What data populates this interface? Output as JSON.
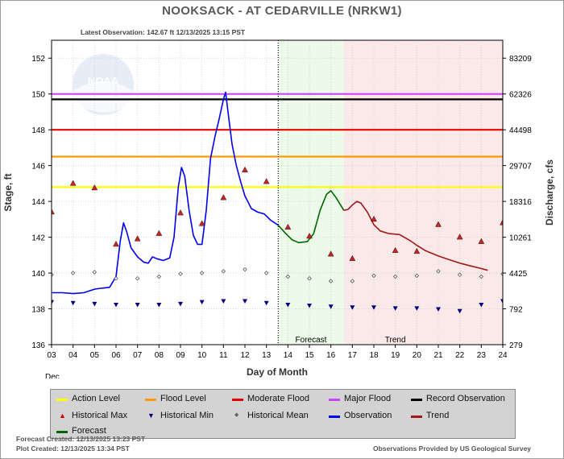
{
  "header": {
    "title": "NOOKSACK - AT CEDARVILLE  (NRKW1)",
    "latest_obs": "Latest Observation: 142.67 ft 12/13/2025 13:15 PST"
  },
  "chart_data": {
    "type": "line",
    "ylabel_left": "Stage, ft",
    "ylabel_right": "Discharge, cfs",
    "xlabel": "Day of Month",
    "month_label": "Dec",
    "ylim": [
      136,
      153
    ],
    "xlim": [
      3,
      24
    ],
    "stage_ticks": [
      136,
      138,
      140,
      142,
      144,
      146,
      148,
      150,
      152
    ],
    "flow_ticks": [
      {
        "stage": 136,
        "label": "279"
      },
      {
        "stage": 138,
        "label": "792"
      },
      {
        "stage": 140,
        "label": "4425"
      },
      {
        "stage": 142,
        "label": "10261"
      },
      {
        "stage": 144,
        "label": "18316"
      },
      {
        "stage": 146,
        "label": "29707"
      },
      {
        "stage": 148,
        "label": "44498"
      },
      {
        "stage": 150,
        "label": "62326"
      },
      {
        "stage": 152,
        "label": "83209"
      }
    ],
    "day_ticks": [
      "03",
      "04",
      "05",
      "06",
      "07",
      "08",
      "09",
      "10",
      "11",
      "12",
      "13",
      "14",
      "15",
      "16",
      "17",
      "18",
      "19",
      "20",
      "21",
      "22",
      "23",
      "24"
    ],
    "levels": [
      {
        "name": "Action Level",
        "value": 144.8,
        "color": "#ffff00"
      },
      {
        "name": "Flood Level",
        "value": 146.5,
        "color": "#ff9900"
      },
      {
        "name": "Moderate Flood",
        "value": 148.0,
        "color": "#e80000"
      },
      {
        "name": "Major Flood",
        "value": 150.0,
        "color": "#cc44ff"
      },
      {
        "name": "Record Observation",
        "value": 149.7,
        "color": "#000000"
      }
    ],
    "now_day": 13.55,
    "forecast_region": [
      13.55,
      16.6
    ],
    "trend_region": [
      16.6,
      24
    ],
    "forecast_label": "Forecast",
    "trend_label": "Trend",
    "observation": {
      "x": [
        3.0,
        3.5,
        4.0,
        4.5,
        5.0,
        5.3,
        5.7,
        6.0,
        6.2,
        6.35,
        6.5,
        6.7,
        7.0,
        7.3,
        7.5,
        7.7,
        7.9,
        8.2,
        8.5,
        8.7,
        8.9,
        9.05,
        9.2,
        9.4,
        9.6,
        9.8,
        10.0,
        10.2,
        10.4,
        10.6,
        10.8,
        11.0,
        11.1,
        11.2,
        11.4,
        11.6,
        11.8,
        12.0,
        12.3,
        12.6,
        12.9,
        13.2,
        13.55
      ],
      "y": [
        138.9,
        138.9,
        138.85,
        138.9,
        139.1,
        139.15,
        139.2,
        139.8,
        141.8,
        142.8,
        142.3,
        141.4,
        140.9,
        140.6,
        140.55,
        140.9,
        140.8,
        140.7,
        140.85,
        142.0,
        144.8,
        145.9,
        145.4,
        143.5,
        142.1,
        141.6,
        141.6,
        143.5,
        146.4,
        147.6,
        148.6,
        149.7,
        150.1,
        149.1,
        147.2,
        146.0,
        145.1,
        144.3,
        143.6,
        143.4,
        143.3,
        142.95,
        142.67
      ]
    },
    "forecast": {
      "x": [
        13.55,
        13.9,
        14.2,
        14.5,
        14.9,
        15.2,
        15.5,
        15.8,
        16.0,
        16.25,
        16.6
      ],
      "y": [
        142.67,
        142.2,
        141.85,
        141.7,
        141.75,
        142.2,
        143.5,
        144.4,
        144.6,
        144.2,
        143.5
      ]
    },
    "trend": {
      "x": [
        16.6,
        16.8,
        17.0,
        17.2,
        17.4,
        17.7,
        18.0,
        18.3,
        18.7,
        19.2,
        19.7,
        20.0,
        20.4,
        21.0,
        21.5,
        22.0,
        22.5,
        23.0,
        23.3
      ],
      "y": [
        143.5,
        143.55,
        143.8,
        144.0,
        143.9,
        143.4,
        142.7,
        142.35,
        142.2,
        142.15,
        141.8,
        141.55,
        141.25,
        140.95,
        140.75,
        140.55,
        140.4,
        140.25,
        140.15
      ]
    },
    "historical_max": {
      "x": [
        3,
        4,
        5,
        6,
        7,
        8,
        9,
        10,
        11,
        12,
        13,
        14,
        15,
        16,
        17,
        18,
        19,
        20,
        21,
        22,
        23,
        24
      ],
      "y": [
        143.4,
        145.0,
        144.75,
        141.6,
        141.9,
        142.2,
        143.35,
        142.75,
        144.2,
        145.75,
        145.1,
        142.55,
        142.05,
        141.05,
        140.8,
        143.0,
        141.25,
        141.2,
        142.7,
        142.0,
        141.75,
        142.8
      ]
    },
    "historical_min": {
      "x": [
        3,
        4,
        5,
        6,
        7,
        8,
        9,
        10,
        11,
        12,
        13,
        14,
        15,
        16,
        17,
        18,
        19,
        20,
        21,
        22,
        23,
        24
      ],
      "y": [
        138.4,
        138.35,
        138.3,
        138.25,
        138.25,
        138.25,
        138.3,
        138.4,
        138.45,
        138.45,
        138.35,
        138.25,
        138.2,
        138.15,
        138.1,
        138.1,
        138.05,
        138.05,
        138.0,
        137.9,
        138.25,
        138.45
      ]
    },
    "historical_mean": {
      "x": [
        3,
        4,
        5,
        6,
        7,
        8,
        9,
        10,
        11,
        12,
        13,
        14,
        15,
        16,
        17,
        18,
        19,
        20,
        21,
        22,
        23,
        24
      ],
      "y": [
        139.9,
        140.0,
        140.05,
        139.7,
        139.7,
        139.8,
        139.95,
        140.0,
        140.1,
        140.2,
        140.0,
        139.8,
        139.7,
        139.55,
        139.55,
        139.85,
        139.8,
        139.85,
        140.1,
        139.9,
        139.8,
        139.95
      ]
    }
  },
  "watermark": "NOAA",
  "legend": {
    "items": [
      {
        "label": "Action Level",
        "color": "#ffff00",
        "kind": "line"
      },
      {
        "label": "Flood Level",
        "color": "#ff9900",
        "kind": "line"
      },
      {
        "label": "Moderate Flood",
        "color": "#e80000",
        "kind": "line"
      },
      {
        "label": "Major Flood",
        "color": "#cc44ff",
        "kind": "line"
      },
      {
        "label": "Record Observation",
        "color": "#000000",
        "kind": "line"
      },
      {
        "label": "Historical Max",
        "color": "#cc0000",
        "kind": "tri-up"
      },
      {
        "label": "Historical Min",
        "color": "#000080",
        "kind": "tri-down"
      },
      {
        "label": "Historical Mean",
        "color": "#666666",
        "kind": "diamond"
      },
      {
        "label": "Observation",
        "color": "#0000ee",
        "kind": "line"
      },
      {
        "label": "Trend",
        "color": "#a01818",
        "kind": "line"
      },
      {
        "label": "Forecast",
        "color": "#006600",
        "kind": "line"
      }
    ]
  },
  "footer": {
    "forecast_created": "Forecast Created: 12/13/2025 13:23 PST",
    "plot_created": "Plot Created: 12/13/2025 13:34 PST",
    "credit": "Observations Provided by US Geological Survey"
  }
}
